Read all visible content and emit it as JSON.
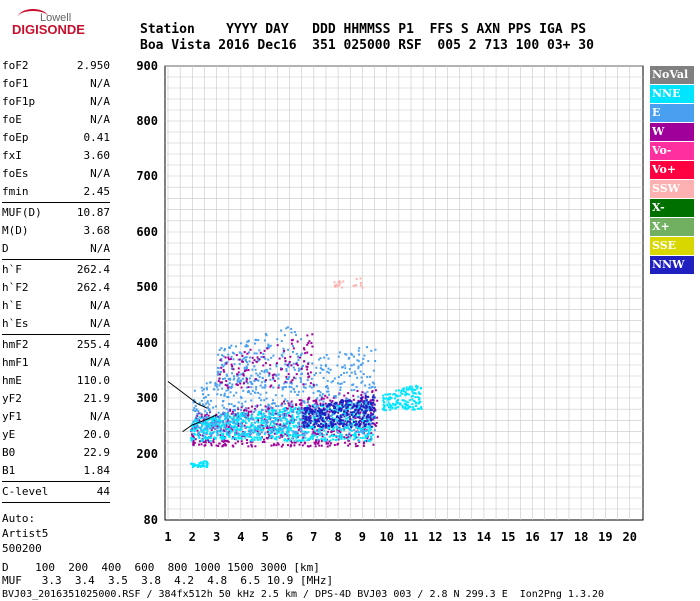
{
  "logo": {
    "top": "Lowell",
    "main": "DIGISONDE"
  },
  "header": {
    "row1": "Station    YYYY DAY   DDD HHMMSS P1  FFS S AXN PPS IGA PS",
    "row2": "Boa Vista 2016 Dec16  351 025000 RSF  005 2 713 100 03+ 30"
  },
  "params": {
    "group1": [
      {
        "k": "foF2",
        "v": "2.950"
      },
      {
        "k": "foF1",
        "v": "N/A"
      },
      {
        "k": "foF1p",
        "v": "N/A"
      },
      {
        "k": "foE",
        "v": "N/A"
      },
      {
        "k": "foEp",
        "v": "0.41"
      },
      {
        "k": "fxI",
        "v": "3.60"
      },
      {
        "k": "foEs",
        "v": "N/A"
      },
      {
        "k": "fmin",
        "v": "2.45"
      }
    ],
    "group2": [
      {
        "k": "MUF(D)",
        "v": "10.87"
      },
      {
        "k": "M(D)",
        "v": "3.68"
      },
      {
        "k": "D",
        "v": "N/A"
      }
    ],
    "group3": [
      {
        "k": "h`F",
        "v": "262.4"
      },
      {
        "k": "h`F2",
        "v": "262.4"
      },
      {
        "k": "h`E",
        "v": "N/A"
      },
      {
        "k": "h`Es",
        "v": "N/A"
      }
    ],
    "group4": [
      {
        "k": "hmF2",
        "v": "255.4"
      },
      {
        "k": "hmF1",
        "v": "N/A"
      },
      {
        "k": "hmE",
        "v": "110.0"
      },
      {
        "k": "yF2",
        "v": "21.9"
      },
      {
        "k": "yF1",
        "v": "N/A"
      },
      {
        "k": "yE",
        "v": "20.0"
      },
      {
        "k": "B0",
        "v": "22.9"
      },
      {
        "k": "B1",
        "v": "1.84"
      }
    ],
    "group5": [
      {
        "k": "C-level",
        "v": "44"
      }
    ],
    "auto": [
      "Auto:",
      "Artist5",
      "500200"
    ]
  },
  "legend": [
    {
      "label": "NoVal",
      "color": "#808080"
    },
    {
      "label": "NNE",
      "color": "#00e5ff"
    },
    {
      "label": "E",
      "color": "#4aa0f0"
    },
    {
      "label": "W",
      "color": "#a0009a"
    },
    {
      "label": "Vo-",
      "color": "#ff2fa0"
    },
    {
      "label": "Vo+",
      "color": "#ff0040"
    },
    {
      "label": "SSW",
      "color": "#ffb0b0"
    },
    {
      "label": "X-",
      "color": "#007000"
    },
    {
      "label": "X+",
      "color": "#70b060"
    },
    {
      "label": "SSE",
      "color": "#d8d800"
    },
    {
      "label": "NNW",
      "color": "#2020c0"
    }
  ],
  "footer": {
    "line1": "D    100  200  400  600  800 1000 1500 3000 [km]",
    "line2": "MUF   3.3  3.4  3.5  3.8  4.2  4.8  6.5 10.9 [MHz]",
    "line3": "BVJ03_2016351025000.RSF / 384fx512h 50 kHz 2.5 km / DPS-4D BVJ03 003 / 2.8 N 299.3 E  Ion2Png 1.3.20"
  },
  "chart_data": {
    "type": "scatter",
    "xlabel": "",
    "ylabel": "",
    "xlim": [
      1,
      20
    ],
    "ylim": [
      80,
      900
    ],
    "x_ticks": [
      1,
      2,
      3,
      4,
      5,
      6,
      7,
      8,
      9,
      10,
      11,
      12,
      13,
      14,
      15,
      16,
      17,
      18,
      19,
      20
    ],
    "y_ticks": [
      80,
      200,
      300,
      400,
      500,
      600,
      700,
      800,
      900
    ],
    "y_tick_labels": [
      "80",
      "200",
      "300",
      "400",
      "500",
      "600",
      "700",
      "800",
      "900"
    ],
    "grid": true,
    "legend_position": "right",
    "clusters": [
      {
        "name": "W",
        "color": "#a0009a",
        "x": [
          1.9,
          9.6
        ],
        "y": [
          215,
          320
        ],
        "n": 700
      },
      {
        "name": "NNE",
        "color": "#00e5ff",
        "x": [
          1.9,
          9.4
        ],
        "y": [
          225,
          300
        ],
        "n": 900
      },
      {
        "name": "E",
        "color": "#4aa0f0",
        "x": [
          2.0,
          9.5
        ],
        "y": [
          235,
          400
        ],
        "n": 600
      },
      {
        "name": "NNW",
        "color": "#2020c0",
        "x": [
          6.5,
          9.5
        ],
        "y": [
          250,
          310
        ],
        "n": 350
      },
      {
        "name": "NNE",
        "color": "#00e5ff",
        "x": [
          9.8,
          11.4
        ],
        "y": [
          280,
          330
        ],
        "n": 160
      },
      {
        "name": "E",
        "color": "#4aa0f0",
        "x": [
          3.0,
          6.5
        ],
        "y": [
          330,
          440
        ],
        "n": 160
      },
      {
        "name": "W",
        "color": "#a0009a",
        "x": [
          3.0,
          7.0
        ],
        "y": [
          320,
          420
        ],
        "n": 120
      },
      {
        "name": "SSW",
        "color": "#ffb0b0",
        "x": [
          7.8,
          9.1
        ],
        "y": [
          500,
          520
        ],
        "n": 20
      },
      {
        "name": "NNE",
        "color": "#00e5ff",
        "x": [
          1.9,
          2.6
        ],
        "y": [
          178,
          190
        ],
        "n": 40
      }
    ],
    "model_curves": [
      {
        "points": [
          [
            1.0,
            330
          ],
          [
            1.6,
            310
          ],
          [
            2.2,
            290
          ],
          [
            2.6,
            282
          ]
        ]
      },
      {
        "points": [
          [
            1.6,
            240
          ],
          [
            2.0,
            252
          ],
          [
            2.6,
            262
          ],
          [
            3.0,
            270
          ]
        ]
      }
    ]
  }
}
